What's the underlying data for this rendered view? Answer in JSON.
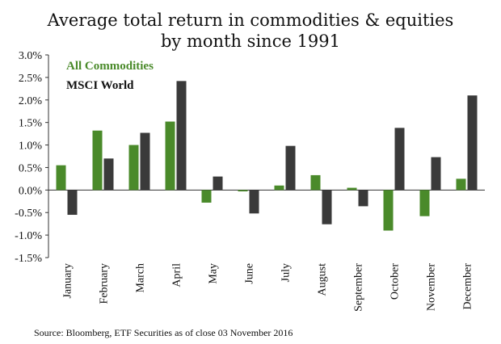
{
  "chart_data": {
    "type": "bar",
    "title_lines": [
      "Average total return in commodities & equities",
      "by month since 1991"
    ],
    "categories": [
      "January",
      "February",
      "March",
      "April",
      "May",
      "June",
      "July",
      "August",
      "September",
      "October",
      "November",
      "December"
    ],
    "series": [
      {
        "name": "All Commodities",
        "color": "#4a8a2a",
        "values": [
          0.55,
          1.32,
          1.0,
          1.52,
          -0.28,
          -0.03,
          0.1,
          0.33,
          0.05,
          -0.9,
          -0.58,
          0.25
        ]
      },
      {
        "name": "MSCI World",
        "color": "#3a3a3a",
        "values": [
          -0.55,
          0.7,
          1.27,
          2.42,
          0.3,
          -0.52,
          0.98,
          -0.76,
          -0.36,
          1.38,
          0.73,
          2.1
        ]
      }
    ],
    "ylim": [
      -1.5,
      3.0
    ],
    "yticks": [
      "3.0%",
      "2.5%",
      "2.0%",
      "1.5%",
      "1.0%",
      "0.5%",
      "0.0%",
      "-0.5%",
      "-1.0%",
      "-1.5%"
    ],
    "legend_text_colors": [
      "#4a8a2a",
      "#111111"
    ],
    "legend_position": "top-left",
    "xlabel": "",
    "ylabel": "",
    "grid": false
  },
  "source": "Source: Bloomberg, ETF Securities as of close 03 November 2016"
}
